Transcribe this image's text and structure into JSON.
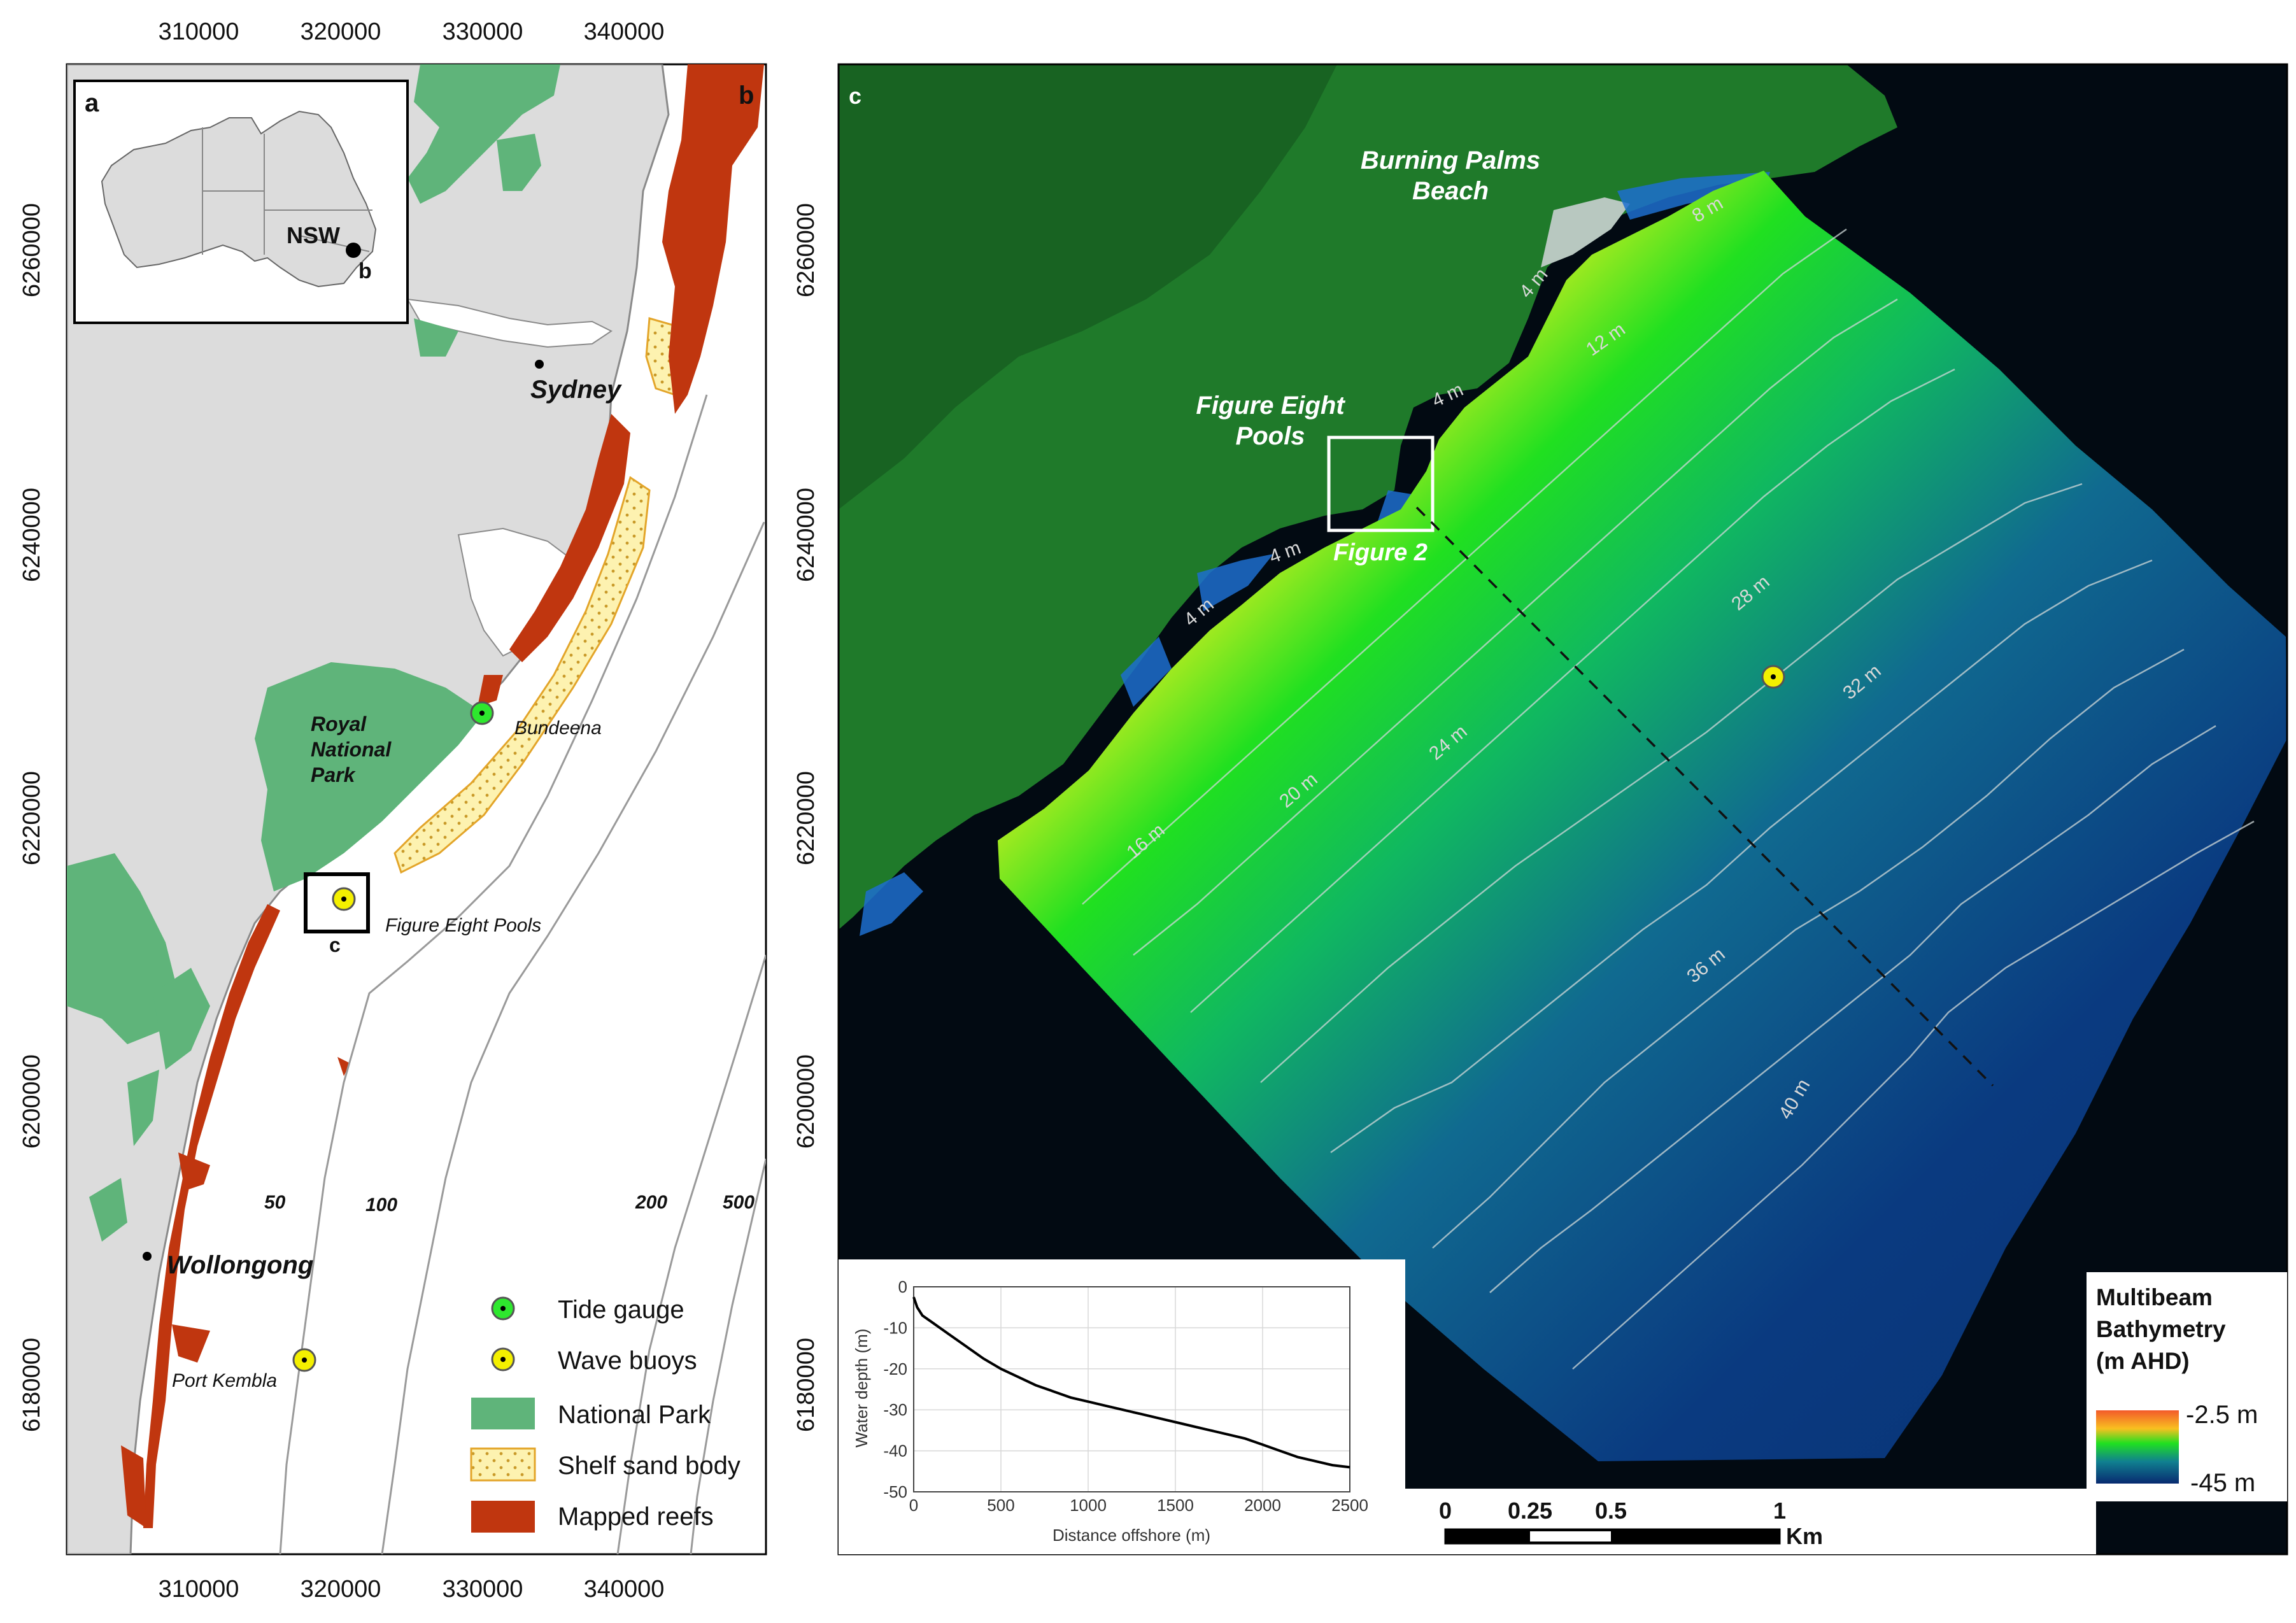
{
  "panel_b": {
    "label": "b",
    "x_ticks": [
      "310000",
      "320000",
      "330000",
      "340000"
    ],
    "y_ticks": [
      "6260000",
      "6240000",
      "6220000",
      "6200000",
      "6180000"
    ],
    "places": {
      "sydney": "Sydney",
      "royal_national_park": [
        "Royal",
        "National",
        "Park"
      ],
      "bundeena": "Bundeena",
      "figure_eight_pools": "Figure Eight Pools",
      "wollongong": "Wollongong",
      "port_kembla": "Port Kembla",
      "inset_c_label": "c"
    },
    "isobaths": [
      "50",
      "100",
      "200",
      "500"
    ],
    "legend": [
      {
        "label": "Tide gauge",
        "symbol": "tide-gauge"
      },
      {
        "label": "Wave buoys",
        "symbol": "wave-buoy"
      },
      {
        "label": "National Park",
        "color": "#5fb47a"
      },
      {
        "label": "Shelf sand body",
        "color": "#fdf2b0"
      },
      {
        "label": "Mapped reefs",
        "color": "#c0360f"
      }
    ],
    "colors": {
      "land": "#dcdcdc",
      "national_park": "#5fb47a",
      "sand": "#fdf2b0",
      "reef": "#c0360f",
      "tide_gauge": "#2ee82e",
      "wave_buoy": "#f4f000"
    }
  },
  "panel_a": {
    "label": "a",
    "state": "NSW",
    "marker": "b"
  },
  "panel_c": {
    "label": "c",
    "places": {
      "burning_palms": [
        "Burning Palms",
        "Beach"
      ],
      "figure_eight": [
        "Figure Eight",
        "Pools"
      ],
      "figure_2": "Figure 2"
    },
    "contours": [
      "8 m",
      "4 m",
      "12 m",
      "4 m",
      "4 m",
      "4 m",
      "16 m",
      "20 m",
      "24 m",
      "28 m",
      "32 m",
      "36 m",
      "40 m"
    ],
    "colorbar": {
      "title": [
        "Multibeam",
        "Bathymetry",
        "(m AHD)"
      ],
      "max": "-2.5 m",
      "min": "-45 m"
    },
    "scalebar": {
      "ticks": [
        "0",
        "0.25",
        "0.5",
        "1"
      ],
      "unit": "Km"
    },
    "profile": {
      "ylabel": "Water depth (m)",
      "xlabel": "Distance offshore (m)",
      "y_ticks": [
        "0",
        "-10",
        "-20",
        "-30",
        "-40",
        "-50"
      ],
      "x_ticks": [
        "0",
        "500",
        "1000",
        "1500",
        "2000",
        "2500"
      ]
    }
  },
  "chart_data": {
    "type": "line",
    "xlabel": "Distance offshore (m)",
    "ylabel": "Water depth (m)",
    "xlim": [
      0,
      2500
    ],
    "ylim": [
      -50,
      0
    ],
    "grid": true,
    "x": [
      0,
      20,
      50,
      100,
      200,
      300,
      400,
      500,
      600,
      700,
      800,
      900,
      1000,
      1100,
      1200,
      1300,
      1400,
      1500,
      1600,
      1700,
      1800,
      1900,
      2000,
      2100,
      2200,
      2300,
      2400,
      2500
    ],
    "series": [
      {
        "values": [
          -2.5,
          -5,
          -7,
          -8.5,
          -11.5,
          -14.5,
          -17.5,
          -20,
          -22,
          -24,
          -25.5,
          -27,
          -28,
          -29,
          -30,
          -31,
          -32,
          -33,
          -34,
          -35,
          -36,
          -37,
          -38.5,
          -40,
          -41.5,
          -42.5,
          -43.5,
          -44
        ]
      }
    ]
  }
}
